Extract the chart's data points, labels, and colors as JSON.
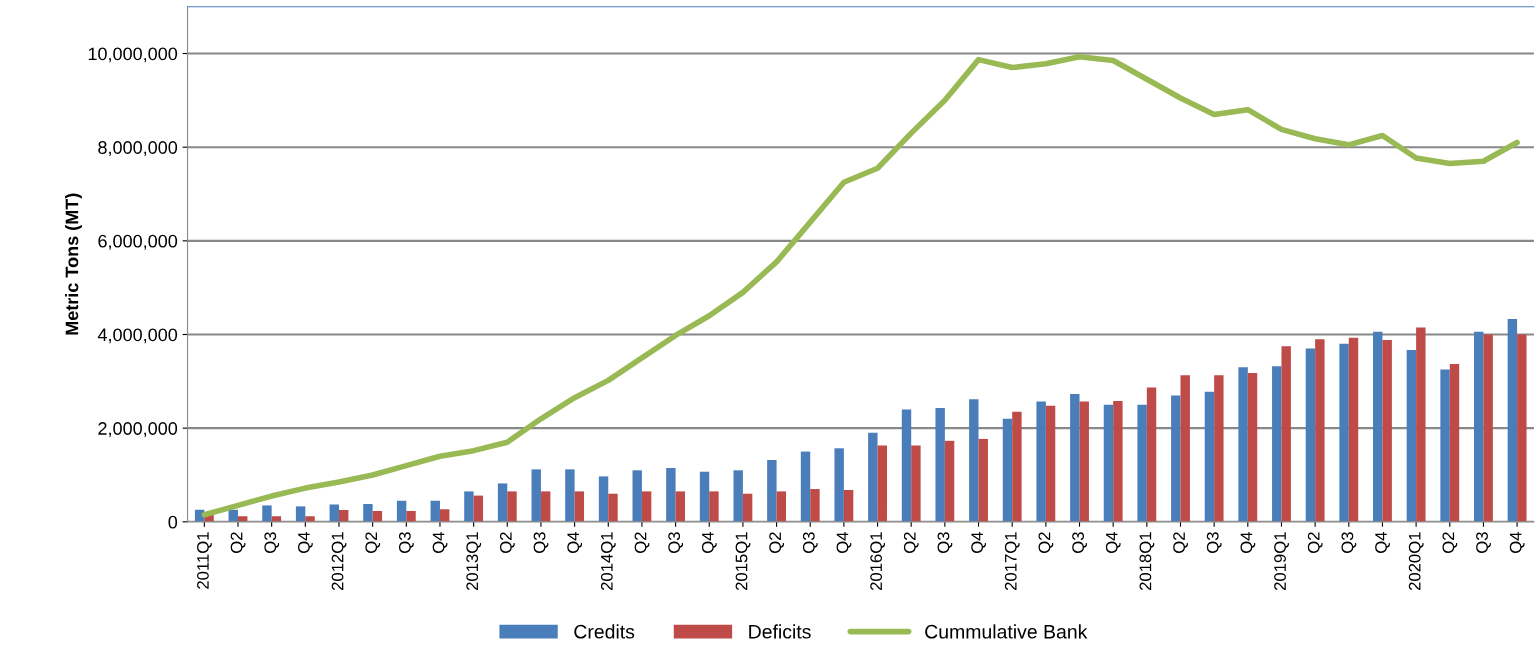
{
  "chart_data": {
    "type": "bar",
    "ylabel": "Metric Tons (MT)",
    "categories": [
      "2011Q1",
      "Q2",
      "Q3",
      "Q4",
      "2012Q1",
      "Q2",
      "Q3",
      "Q4",
      "2013Q1",
      "Q2",
      "Q3",
      "Q4",
      "2014Q1",
      "Q2",
      "Q3",
      "Q4",
      "2015Q1",
      "Q2",
      "Q3",
      "Q4",
      "2016Q1",
      "Q2",
      "Q3",
      "Q4",
      "2017Q1",
      "Q2",
      "Q3",
      "Q4",
      "2018Q1",
      "Q2",
      "Q3",
      "Q4",
      "2019Q1",
      "Q2",
      "Q3",
      "Q4",
      "2020Q1",
      "Q2",
      "Q3",
      "Q4"
    ],
    "series": [
      {
        "name": "Credits",
        "color": "#4a7ebb",
        "values": [
          260000,
          260000,
          350000,
          330000,
          370000,
          380000,
          450000,
          450000,
          650000,
          820000,
          1120000,
          1120000,
          970000,
          1100000,
          1150000,
          1070000,
          1100000,
          1320000,
          1500000,
          1570000,
          1900000,
          2400000,
          2430000,
          2620000,
          2200000,
          2570000,
          2730000,
          2500000,
          2500000,
          2700000,
          2780000,
          3300000,
          3320000,
          3700000,
          3800000,
          4060000,
          3670000,
          3250000,
          4060000,
          4330000
        ]
      },
      {
        "name": "Deficits",
        "color": "#be4b48",
        "values": [
          150000,
          120000,
          120000,
          120000,
          250000,
          230000,
          230000,
          270000,
          560000,
          650000,
          650000,
          650000,
          600000,
          650000,
          650000,
          650000,
          600000,
          650000,
          700000,
          680000,
          1630000,
          1630000,
          1730000,
          1770000,
          2350000,
          2480000,
          2570000,
          2580000,
          2870000,
          3130000,
          3130000,
          3180000,
          3750000,
          3900000,
          3930000,
          3880000,
          4150000,
          3370000,
          4000000,
          4000000
        ]
      },
      {
        "name": "Cummulative Bank",
        "type": "line",
        "color": "#98b954",
        "values": [
          150000,
          350000,
          550000,
          720000,
          850000,
          1000000,
          1200000,
          1400000,
          1520000,
          1700000,
          2200000,
          2650000,
          3020000,
          3500000,
          3980000,
          4400000,
          4900000,
          5550000,
          6400000,
          7250000,
          7550000,
          8300000,
          9000000,
          9870000,
          9700000,
          9780000,
          9930000,
          9850000,
          9450000,
          9050000,
          8700000,
          8800000,
          8380000,
          8180000,
          8050000,
          8250000,
          7770000,
          7650000,
          7700000,
          8100000
        ]
      }
    ],
    "ylim": [
      0,
      11000000
    ],
    "yticks": [
      0,
      {
        "value": 2000000,
        "label": "2,000,000"
      },
      {
        "value": 4000000,
        "label": "4,000,000"
      },
      {
        "value": 6000000,
        "label": "6,000,000"
      },
      {
        "value": 8000000,
        "label": "8,000,000"
      },
      {
        "value": 10000000,
        "label": "10,000,000"
      }
    ],
    "grid": "y",
    "legend": "bottom",
    "marker": "none",
    "line_style": "solid"
  }
}
